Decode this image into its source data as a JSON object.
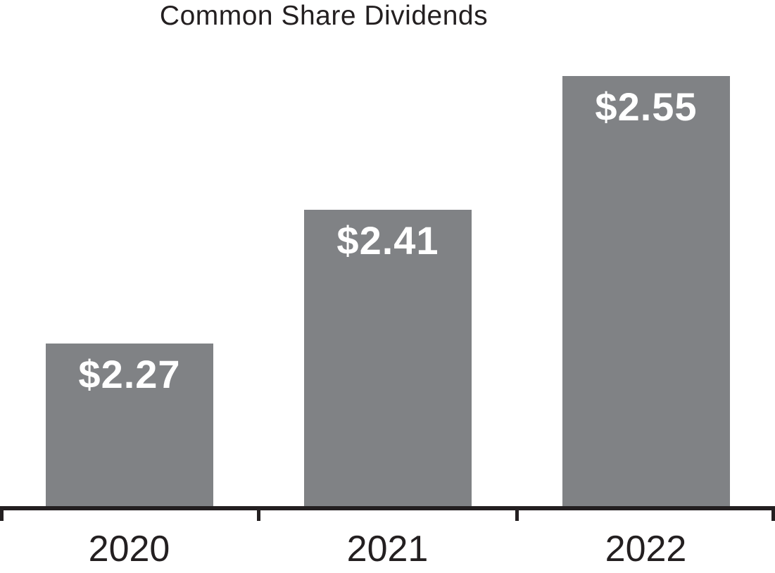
{
  "chart_data": {
    "type": "bar",
    "title": "Common Share Dividends",
    "categories": [
      "2020",
      "2021",
      "2022"
    ],
    "values": [
      2.27,
      2.41,
      2.55
    ],
    "value_labels": [
      "$2.27",
      "$2.41",
      "$2.55"
    ],
    "xlabel": "",
    "ylabel": "",
    "ylim": [
      2.1,
      2.6
    ],
    "grid": false,
    "legend": false,
    "bar_color": "#808285",
    "value_label_color": "#FFFFFF",
    "axis_color": "#231F20",
    "text_color": "#231F20",
    "background_color": "#FFFFFF"
  }
}
